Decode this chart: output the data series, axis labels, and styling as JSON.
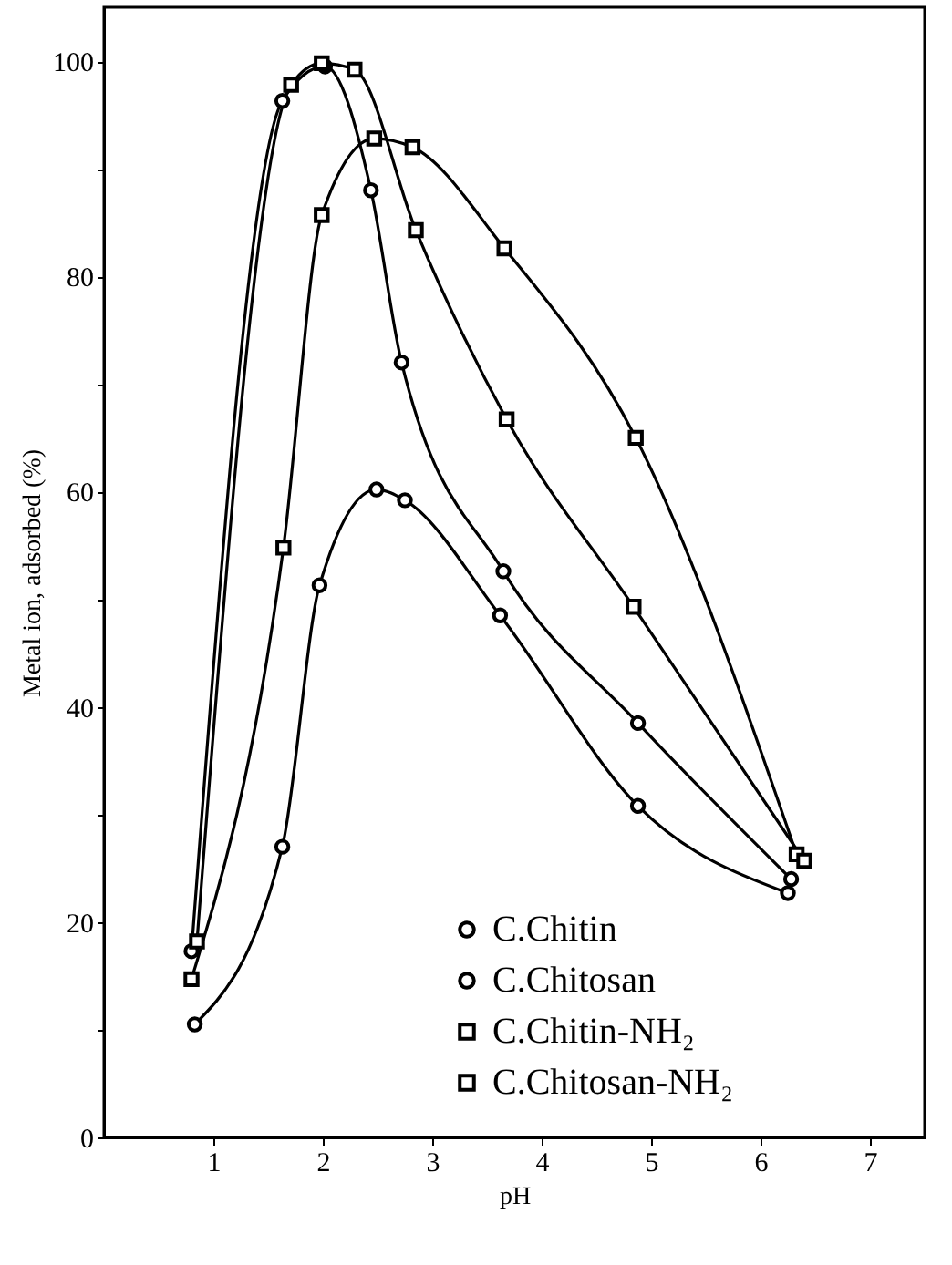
{
  "chart_data": {
    "type": "line",
    "xlabel": "pH",
    "ylabel": "Metal ion, adsorbed (%)",
    "xlim": [
      0,
      7.5
    ],
    "ylim": [
      0,
      105
    ],
    "xticks": [
      1,
      2,
      3,
      4,
      5,
      6,
      7
    ],
    "yticks": [
      0,
      {
        "value": 10,
        "label": null
      },
      20,
      {
        "value": 30,
        "label": null
      },
      40,
      {
        "value": 50,
        "label": null
      },
      60,
      {
        "value": 70,
        "label": null
      },
      80,
      {
        "value": 90,
        "label": null
      },
      100
    ],
    "legend": "bottom",
    "grid": false,
    "series": [
      {
        "name": "C.Chitin",
        "color": "#000000",
        "marker": "circle",
        "x": [
          0.83,
          1.63,
          1.97,
          2.49,
          2.75,
          3.62,
          4.88,
          6.25
        ],
        "values": [
          10.5,
          27,
          51.3,
          60.2,
          59.2,
          48.5,
          30.8,
          22.7
        ]
      },
      {
        "name": "C.Chitosan",
        "color": "#000000",
        "marker": "circle",
        "x": [
          0.8,
          1.63,
          2.02,
          2.44,
          2.72,
          3.65,
          4.88,
          6.28
        ],
        "values": [
          17.3,
          96.3,
          99.5,
          88,
          72,
          52.6,
          38.5,
          24
        ]
      },
      {
        "name": "C.Chitin-NH₂",
        "color": "#000000",
        "marker": "square",
        "x": [
          0.8,
          1.64,
          1.99,
          2.47,
          2.82,
          3.66,
          4.86,
          6.33
        ],
        "values": [
          14.7,
          54.8,
          85.7,
          92.8,
          92,
          82.6,
          65,
          26.3
        ]
      },
      {
        "name": "C.Chitosan-NH₂",
        "color": "#000000",
        "marker": "square",
        "x": [
          0.85,
          1.71,
          1.99,
          2.29,
          2.85,
          3.68,
          4.84,
          6.4
        ],
        "values": [
          18.2,
          97.8,
          99.8,
          99.2,
          84.3,
          66.7,
          49.3,
          25.7
        ]
      }
    ]
  }
}
